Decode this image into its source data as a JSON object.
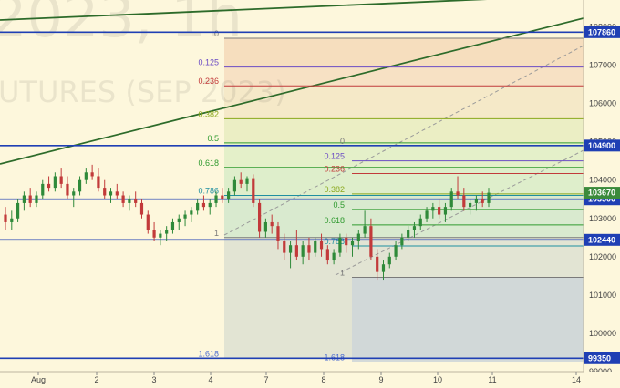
{
  "watermark": {
    "line1": "2023, 1h",
    "line2": "UTURES (SEP 2023)"
  },
  "colors": {
    "background": "#fdf7dc",
    "up": "#2f8a3a",
    "down": "#c23a3a",
    "hline": "#1f3fb4",
    "trend": "#2d6b2a",
    "label_bg": "#1f3fb4"
  },
  "chart_data": {
    "type": "candlestick",
    "ylim": [
      99000,
      108700
    ],
    "x_ticks": [
      "Aug",
      "2",
      "3",
      "4",
      "7",
      "8",
      "9",
      "10",
      "11",
      "14"
    ],
    "y_ticks": [
      108000,
      107000,
      106000,
      105000,
      104000,
      103000,
      102000,
      101000,
      100000,
      99000
    ],
    "price_lines": [
      {
        "value": 107860,
        "label": "107860"
      },
      {
        "value": 104900,
        "label": "104900"
      },
      {
        "value": 103500,
        "label": "103500"
      },
      {
        "value": 102440,
        "label": "102440"
      },
      {
        "value": 99350,
        "label": "99350"
      }
    ],
    "last_price": {
      "value": 103670,
      "label": "103670"
    },
    "fib1": {
      "levels": [
        {
          "label": "0",
          "value": 107700,
          "color": "#7a7a7a"
        },
        {
          "label": "0.125",
          "value": 106950,
          "color": "#6b4cc4"
        },
        {
          "label": "0.236",
          "value": 106460,
          "color": "#c23a3a"
        },
        {
          "label": "0.382",
          "value": 105600,
          "color": "#8aa81c"
        },
        {
          "label": "0.5",
          "value": 104970,
          "color": "#2f9a2f"
        },
        {
          "label": "0.618",
          "value": 104330,
          "color": "#2f9a2f"
        },
        {
          "label": "0.786",
          "value": 103600,
          "color": "#1f8fa0"
        },
        {
          "label": "1",
          "value": 102500,
          "color": "#7a7a7a"
        },
        {
          "label": "1.618",
          "value": 99350,
          "color": "#4f6fd0"
        }
      ]
    },
    "fib2": {
      "levels": [
        {
          "label": "0",
          "value": 104900,
          "color": "#7a7a7a"
        },
        {
          "label": "0.125",
          "value": 104500,
          "color": "#6b4cc4"
        },
        {
          "label": "0.236",
          "value": 104170,
          "color": "#c23a3a"
        },
        {
          "label": "0.382",
          "value": 103640,
          "color": "#8aa81c"
        },
        {
          "label": "0.5",
          "value": 103230,
          "color": "#2f9a2f"
        },
        {
          "label": "0.618",
          "value": 102830,
          "color": "#2f9a2f"
        },
        {
          "label": "0.786",
          "value": 102280,
          "color": "#1f8fa0"
        },
        {
          "label": "1",
          "value": 101460,
          "color": "#7a7a7a"
        },
        {
          "label": "1.618",
          "value": 99250,
          "color": "#4f6fd0"
        }
      ]
    },
    "candles": [
      [
        103100,
        103300,
        102700,
        102900
      ],
      [
        102900,
        103200,
        102700,
        103000
      ],
      [
        103000,
        103500,
        102900,
        103400
      ],
      [
        103400,
        103700,
        103200,
        103600
      ],
      [
        103600,
        103800,
        103300,
        103400
      ],
      [
        103400,
        103700,
        103300,
        103600
      ],
      [
        103600,
        104000,
        103500,
        103900
      ],
      [
        103900,
        104100,
        103700,
        103800
      ],
      [
        103800,
        104200,
        103700,
        104100
      ],
      [
        104100,
        104300,
        103800,
        103900
      ],
      [
        103900,
        104100,
        103500,
        103600
      ],
      [
        103600,
        103800,
        103300,
        103700
      ],
      [
        103700,
        104100,
        103600,
        104000
      ],
      [
        104000,
        104300,
        103900,
        104200
      ],
      [
        104200,
        104400,
        104000,
        104100
      ],
      [
        104100,
        104300,
        103700,
        103800
      ],
      [
        103800,
        104000,
        103500,
        103600
      ],
      [
        103600,
        103800,
        103400,
        103700
      ],
      [
        103700,
        103900,
        103500,
        103600
      ],
      [
        103600,
        103700,
        103300,
        103400
      ],
      [
        103400,
        103600,
        103200,
        103500
      ],
      [
        103500,
        103700,
        103300,
        103400
      ],
      [
        103400,
        103500,
        103000,
        103100
      ],
      [
        103100,
        103200,
        102600,
        102700
      ],
      [
        102700,
        102900,
        102400,
        102500
      ],
      [
        102500,
        102700,
        102300,
        102600
      ],
      [
        102600,
        102800,
        102400,
        102700
      ],
      [
        102700,
        103000,
        102600,
        102900
      ],
      [
        102900,
        103100,
        102700,
        103000
      ],
      [
        103000,
        103200,
        102800,
        103100
      ],
      [
        103100,
        103300,
        102900,
        103200
      ],
      [
        103200,
        103500,
        103100,
        103400
      ],
      [
        103400,
        103600,
        103200,
        103300
      ],
      [
        103300,
        103500,
        103100,
        103400
      ],
      [
        103400,
        103700,
        103300,
        103600
      ],
      [
        103600,
        103800,
        103400,
        103500
      ],
      [
        103500,
        103800,
        103400,
        103700
      ],
      [
        103700,
        104100,
        103600,
        104000
      ],
      [
        104000,
        104200,
        103800,
        103900
      ],
      [
        103900,
        104100,
        103700,
        104050
      ],
      [
        104050,
        104150,
        103300,
        103400
      ],
      [
        103400,
        103500,
        102500,
        102650
      ],
      [
        102650,
        103000,
        102500,
        102900
      ],
      [
        102900,
        103100,
        102600,
        102800
      ],
      [
        102800,
        102900,
        102200,
        102400
      ],
      [
        102400,
        102600,
        101900,
        102100
      ],
      [
        102100,
        102400,
        101700,
        102300
      ],
      [
        102300,
        102700,
        101900,
        102000
      ],
      [
        102000,
        102400,
        101800,
        102300
      ],
      [
        102300,
        102500,
        101900,
        102100
      ],
      [
        102100,
        102500,
        102000,
        102400
      ],
      [
        102400,
        102600,
        102000,
        102200
      ],
      [
        102200,
        102300,
        101800,
        101900
      ],
      [
        101900,
        102200,
        101800,
        102100
      ],
      [
        102100,
        102600,
        102000,
        102500
      ],
      [
        102500,
        102600,
        102100,
        102300
      ],
      [
        102300,
        102500,
        102000,
        102400
      ],
      [
        102400,
        102700,
        102200,
        102600
      ],
      [
        102600,
        103200,
        102500,
        102800
      ],
      [
        102800,
        103000,
        101900,
        102000
      ],
      [
        102000,
        102200,
        101400,
        101600
      ],
      [
        101600,
        101900,
        101400,
        101800
      ],
      [
        101800,
        102100,
        101700,
        102000
      ],
      [
        102000,
        102400,
        101900,
        102300
      ],
      [
        102300,
        102600,
        102200,
        102500
      ],
      [
        102500,
        102800,
        102400,
        102700
      ],
      [
        102700,
        102900,
        102500,
        102800
      ],
      [
        102800,
        103100,
        102700,
        103000
      ],
      [
        103000,
        103300,
        102900,
        103200
      ],
      [
        103200,
        103400,
        103000,
        103300
      ],
      [
        103300,
        103500,
        103000,
        103100
      ],
      [
        103100,
        103400,
        102900,
        103300
      ],
      [
        103300,
        103800,
        103200,
        103700
      ],
      [
        103700,
        104100,
        103500,
        103600
      ],
      [
        103600,
        103800,
        103200,
        103300
      ],
      [
        103300,
        103500,
        103100,
        103400
      ],
      [
        103400,
        103600,
        103200,
        103500
      ],
      [
        103500,
        103700,
        103300,
        103400
      ],
      [
        103400,
        103800,
        103300,
        103670
      ]
    ]
  }
}
